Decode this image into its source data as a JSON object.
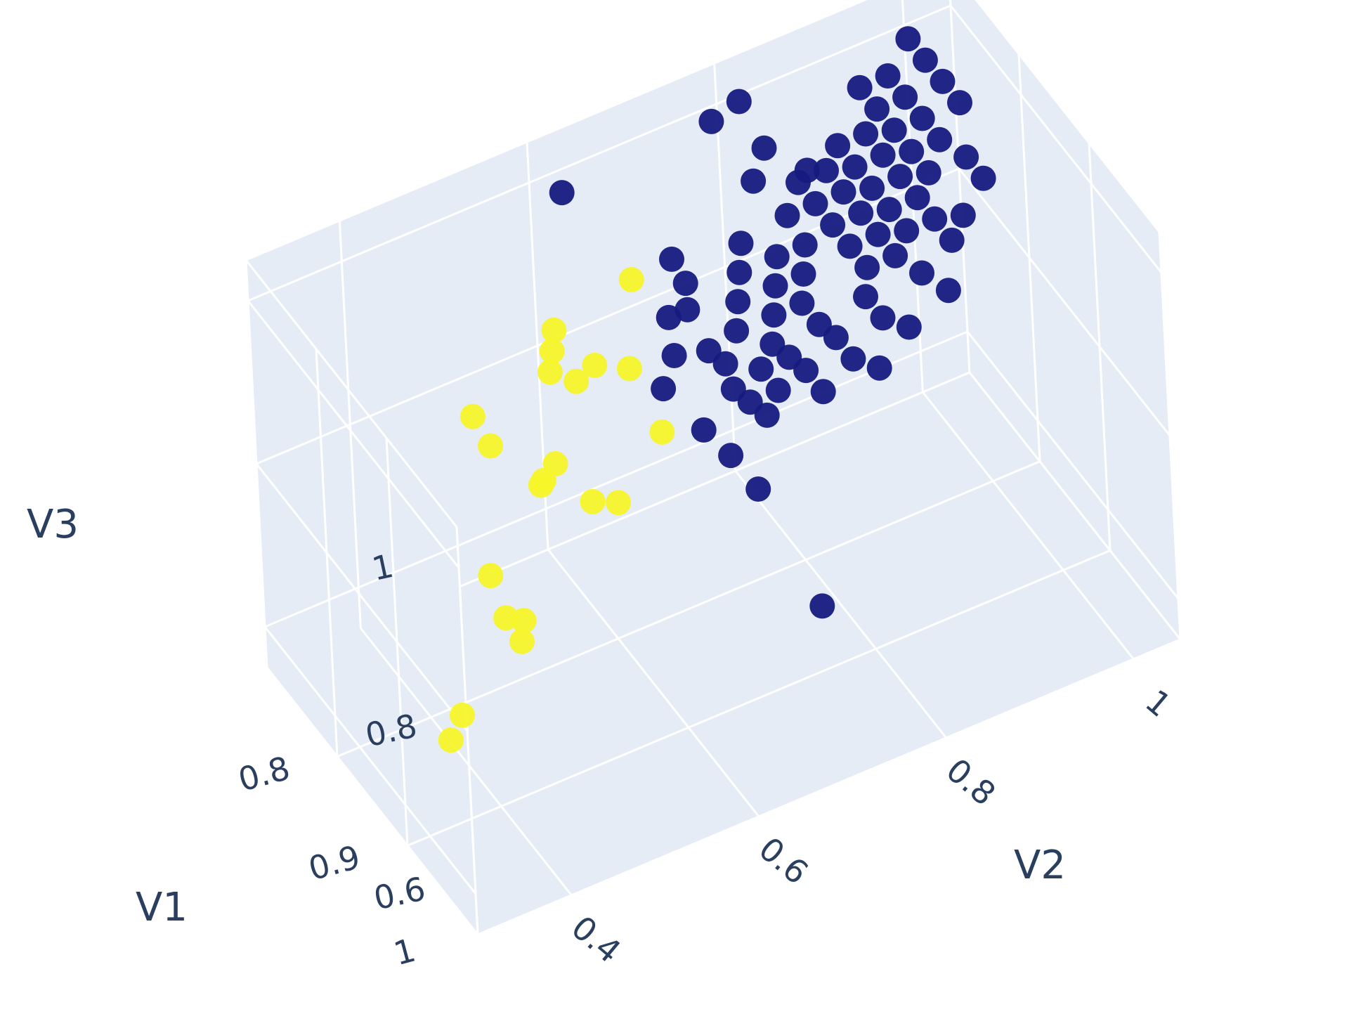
{
  "chart_data": {
    "type": "scatter3d",
    "axes": {
      "x": {
        "title": "V1",
        "range": [
          0.7,
          1.0
        ],
        "ticks": [
          0.8,
          0.9,
          1.0
        ],
        "tick_labels": [
          "0.8",
          "0.9",
          "1"
        ]
      },
      "y": {
        "title": "V2",
        "range": [
          0.3,
          1.05
        ],
        "ticks": [
          0.4,
          0.6,
          0.8,
          1.0
        ],
        "tick_labels": [
          "0.4",
          "0.6",
          "0.8",
          "1"
        ]
      },
      "z": {
        "title": "V3",
        "range": [
          0.55,
          1.05
        ],
        "ticks": [
          0.6,
          0.8,
          1.0
        ],
        "tick_labels": [
          "0.6",
          "0.8",
          "1"
        ]
      }
    },
    "grid": true,
    "background_color": "#e5ecf6",
    "grid_color": "#ffffff",
    "series": [
      {
        "color": "#f5f52a",
        "points": [
          [
            0.96,
            0.31,
            0.74
          ],
          [
            0.95,
            0.33,
            0.75
          ],
          [
            0.93,
            0.41,
            0.78
          ],
          [
            0.92,
            0.42,
            0.79
          ],
          [
            0.8,
            0.47,
            0.69
          ],
          [
            0.82,
            0.47,
            0.66
          ],
          [
            0.8,
            0.46,
            0.89
          ],
          [
            0.81,
            0.47,
            0.86
          ],
          [
            0.84,
            0.5,
            0.83
          ],
          [
            0.83,
            0.51,
            0.82
          ],
          [
            0.82,
            0.53,
            0.82
          ],
          [
            0.79,
            0.55,
            0.89
          ],
          [
            0.78,
            0.56,
            0.9
          ],
          [
            0.77,
            0.57,
            0.91
          ],
          [
            0.8,
            0.57,
            0.88
          ],
          [
            0.8,
            0.59,
            0.89
          ],
          [
            0.83,
            0.56,
            0.77
          ],
          [
            0.84,
            0.58,
            0.77
          ],
          [
            0.79,
            0.64,
            0.96
          ],
          [
            0.78,
            0.64,
            0.84
          ],
          [
            0.81,
            0.65,
            0.79
          ]
        ]
      },
      {
        "color": "#161a7f",
        "points": [
          [
            0.72,
            0.62,
            1.0
          ],
          [
            0.83,
            0.64,
            0.87
          ],
          [
            0.8,
            0.67,
            0.91
          ],
          [
            0.82,
            0.66,
            0.89
          ],
          [
            0.78,
            0.69,
            0.95
          ],
          [
            0.8,
            0.69,
            0.91
          ],
          [
            0.77,
            0.71,
            0.9
          ],
          [
            0.83,
            0.68,
            0.8
          ],
          [
            0.84,
            0.7,
            0.77
          ],
          [
            0.85,
            0.72,
            0.73
          ],
          [
            0.88,
            0.76,
            0.6
          ],
          [
            0.8,
            0.71,
            0.85
          ],
          [
            0.81,
            0.72,
            0.84
          ],
          [
            0.82,
            0.72,
            0.82
          ],
          [
            0.8,
            0.74,
            0.86
          ],
          [
            0.83,
            0.73,
            0.81
          ],
          [
            0.84,
            0.74,
            0.8
          ],
          [
            0.82,
            0.75,
            0.83
          ],
          [
            0.83,
            0.76,
            0.81
          ],
          [
            0.81,
            0.77,
            0.84
          ],
          [
            0.8,
            0.78,
            0.86
          ],
          [
            0.79,
            0.79,
            0.88
          ],
          [
            0.78,
            0.8,
            0.9
          ],
          [
            0.82,
            0.78,
            0.83
          ],
          [
            0.83,
            0.79,
            0.82
          ],
          [
            0.84,
            0.8,
            0.8
          ],
          [
            0.8,
            0.81,
            0.86
          ],
          [
            0.81,
            0.82,
            0.84
          ],
          [
            0.79,
            0.82,
            0.88
          ],
          [
            0.78,
            0.83,
            0.9
          ],
          [
            0.82,
            0.83,
            0.83
          ],
          [
            0.83,
            0.84,
            0.81
          ],
          [
            0.77,
            0.82,
            0.93
          ],
          [
            0.76,
            0.84,
            0.95
          ],
          [
            0.75,
            0.8,
            0.96
          ],
          [
            0.74,
            0.82,
            0.98
          ],
          [
            0.72,
            0.78,
            1.01
          ],
          [
            0.72,
            0.81,
            1.02
          ],
          [
            0.77,
            0.85,
            0.93
          ],
          [
            0.78,
            0.86,
            0.91
          ],
          [
            0.79,
            0.87,
            0.89
          ],
          [
            0.8,
            0.88,
            0.87
          ],
          [
            0.81,
            0.87,
            0.85
          ],
          [
            0.82,
            0.88,
            0.83
          ],
          [
            0.76,
            0.87,
            0.95
          ],
          [
            0.77,
            0.88,
            0.93
          ],
          [
            0.78,
            0.89,
            0.91
          ],
          [
            0.79,
            0.9,
            0.89
          ],
          [
            0.8,
            0.91,
            0.87
          ],
          [
            0.75,
            0.89,
            0.96
          ],
          [
            0.76,
            0.9,
            0.94
          ],
          [
            0.77,
            0.91,
            0.92
          ],
          [
            0.78,
            0.92,
            0.9
          ],
          [
            0.79,
            0.93,
            0.88
          ],
          [
            0.75,
            0.92,
            0.96
          ],
          [
            0.76,
            0.93,
            0.94
          ],
          [
            0.77,
            0.94,
            0.92
          ],
          [
            0.78,
            0.95,
            0.9
          ],
          [
            0.73,
            0.93,
            0.99
          ],
          [
            0.74,
            0.94,
            0.97
          ],
          [
            0.75,
            0.95,
            0.95
          ],
          [
            0.76,
            0.96,
            0.93
          ],
          [
            0.77,
            0.97,
            0.91
          ],
          [
            0.79,
            0.96,
            0.88
          ],
          [
            0.8,
            0.97,
            0.86
          ],
          [
            0.73,
            0.96,
            0.99
          ],
          [
            0.74,
            0.97,
            0.97
          ],
          [
            0.75,
            0.98,
            0.95
          ],
          [
            0.76,
            0.99,
            0.93
          ],
          [
            0.72,
            0.99,
            1.01
          ],
          [
            0.73,
            1.0,
            0.99
          ],
          [
            0.74,
            1.01,
            0.97
          ],
          [
            0.75,
            1.02,
            0.95
          ],
          [
            0.77,
            1.01,
            0.91
          ],
          [
            0.78,
            1.02,
            0.89
          ],
          [
            0.79,
            0.99,
            0.87
          ],
          [
            0.76,
            0.85,
            0.96
          ],
          [
            0.81,
            0.93,
            0.85
          ],
          [
            0.82,
            0.95,
            0.83
          ],
          [
            0.83,
            0.9,
            0.82
          ],
          [
            0.84,
            0.86,
            0.8
          ],
          [
            0.78,
            0.76,
            0.9
          ],
          [
            0.79,
            0.75,
            0.88
          ],
          [
            0.77,
            0.77,
            0.92
          ]
        ]
      }
    ]
  }
}
